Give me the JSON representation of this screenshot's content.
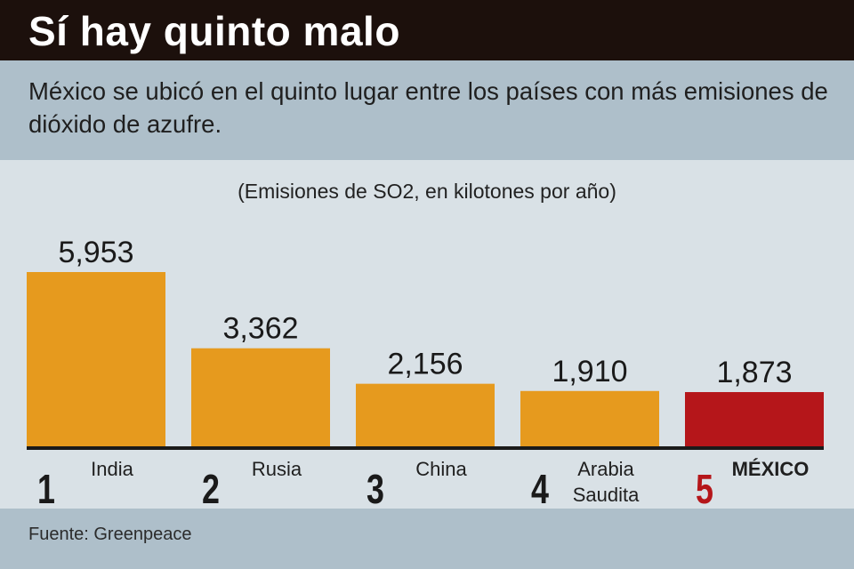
{
  "title": "Sí hay quinto malo",
  "subtitle": "México se ubicó en el quinto lugar entre los países con más emisiones de dióxido de azufre.",
  "source": "Fuente: Greenpeace",
  "colors": {
    "bar": "#e69a1e",
    "highlight": "#b5161a",
    "baseline": "#1a1a1a",
    "highlight_rank": "#b5161a"
  },
  "chart_data": {
    "type": "bar",
    "unit_label": "(Emisiones de SO2, en kilotones por año)",
    "categories": [
      {
        "rank": "1",
        "label": [
          "India"
        ],
        "value": 5953,
        "value_label": "5,953",
        "highlight": false
      },
      {
        "rank": "2",
        "label": [
          "Rusia"
        ],
        "value": 3362,
        "value_label": "3,362",
        "highlight": false
      },
      {
        "rank": "3",
        "label": [
          "China"
        ],
        "value": 2156,
        "value_label": "2,156",
        "highlight": false
      },
      {
        "rank": "4",
        "label": [
          "Arabia",
          "Saudita"
        ],
        "value": 1910,
        "value_label": "1,910",
        "highlight": false
      },
      {
        "rank": "5",
        "label": [
          "MÉXICO"
        ],
        "value": 1873,
        "value_label": "1,873",
        "highlight": true
      }
    ]
  }
}
